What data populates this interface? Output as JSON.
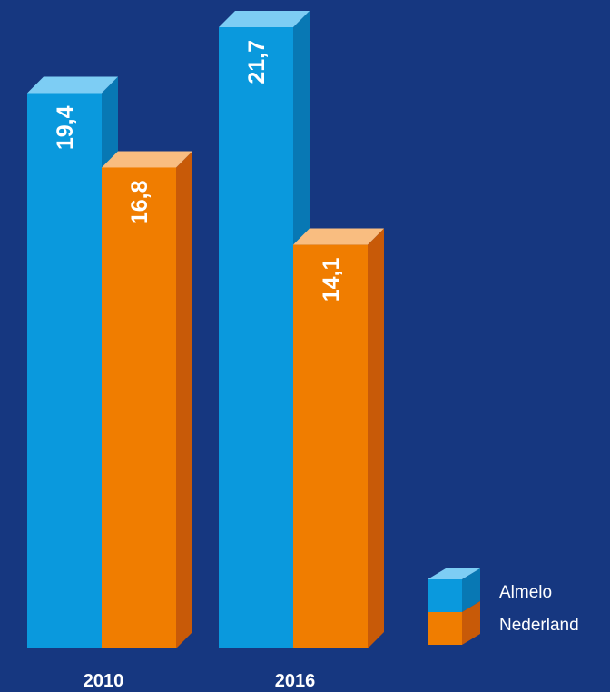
{
  "chart_data": {
    "type": "bar",
    "categories": [
      "2010",
      "2016"
    ],
    "series": [
      {
        "name": "Almelo",
        "values": [
          19.4,
          21.7
        ],
        "labels": [
          "19,4",
          "21,7"
        ],
        "colors": {
          "front": "#0a99dd",
          "top": "#7dcdf4",
          "side": "#0878b4"
        }
      },
      {
        "name": "Nederland",
        "values": [
          16.8,
          14.1
        ],
        "labels": [
          "16,8",
          "14,1"
        ],
        "colors": {
          "front": "#f07d00",
          "top": "#f9bd80",
          "side": "#c85a08"
        }
      }
    ],
    "ylim": [
      0,
      21.7
    ],
    "legend_position": "bottom-right",
    "grid": false
  }
}
